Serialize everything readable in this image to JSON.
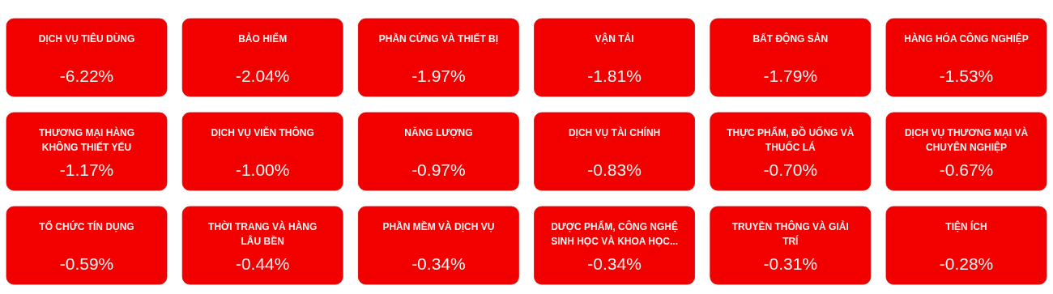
{
  "chart_data": {
    "type": "other",
    "color": "#f20000",
    "categories": [
      "DỊCH VỤ TIÊU DÙNG",
      "BẢO HIỂM",
      "PHẦN CỨNG VÀ THIẾT BỊ",
      "VẬN TẢI",
      "BẤT ĐỘNG SẢN",
      "HÀNG HÓA CÔNG NGHIỆP",
      "THƯƠNG MẠI HÀNG KHÔNG THIẾT YẾU",
      "DỊCH VỤ VIỄN THÔNG",
      "NĂNG LƯỢNG",
      "DỊCH VỤ TÀI CHÍNH",
      "THỰC PHẨM, ĐỒ UỐNG VÀ THUỐC LÁ",
      "DỊCH VỤ THƯƠNG MẠI VÀ CHUYÊN NGHIỆP",
      "TỔ CHỨC TÍN DỤNG",
      "THỜI TRANG VÀ HÀNG LÂU BỀN",
      "PHẦN MỀM VÀ DỊCH VỤ",
      "DƯỢC PHẨM, CÔNG NGHỆ SINH HỌC VÀ KHOA HỌC...",
      "TRUYỀN THÔNG VÀ GIẢI TRÍ",
      "TIỆN ÍCH"
    ],
    "values": [
      -6.22,
      -2.04,
      -1.97,
      -1.81,
      -1.79,
      -1.53,
      -1.17,
      -1.0,
      -0.97,
      -0.83,
      -0.7,
      -0.67,
      -0.59,
      -0.44,
      -0.34,
      -0.34,
      -0.31,
      -0.28
    ],
    "value_labels": [
      "-6.22%",
      "-2.04%",
      "-1.97%",
      "-1.81%",
      "-1.79%",
      "-1.53%",
      "-1.17%",
      "-1.00%",
      "-0.97%",
      "-0.83%",
      "-0.70%",
      "-0.67%",
      "-0.59%",
      "-0.44%",
      "-0.34%",
      "-0.34%",
      "-0.31%",
      "-0.28%"
    ]
  }
}
